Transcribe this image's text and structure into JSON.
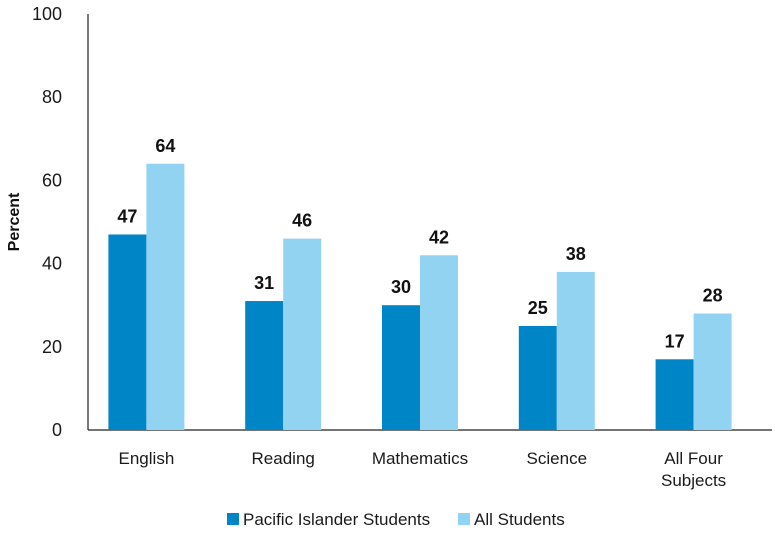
{
  "chart_data": {
    "type": "bar",
    "ylabel": "Percent",
    "ylim": [
      0,
      100
    ],
    "yticks": [
      0,
      20,
      40,
      60,
      80,
      100
    ],
    "grid": false,
    "legend_position": "bottom",
    "categories": [
      [
        "English"
      ],
      [
        "Reading"
      ],
      [
        "Mathematics"
      ],
      [
        "Science"
      ],
      [
        "All Four",
        "Subjects"
      ]
    ],
    "series": [
      {
        "name": "Pacific Islander Students",
        "color": "#0085c7",
        "values": [
          47,
          31,
          30,
          25,
          17
        ]
      },
      {
        "name": "All Students",
        "color": "#92d3f1",
        "values": [
          64,
          46,
          42,
          38,
          28
        ]
      }
    ]
  }
}
